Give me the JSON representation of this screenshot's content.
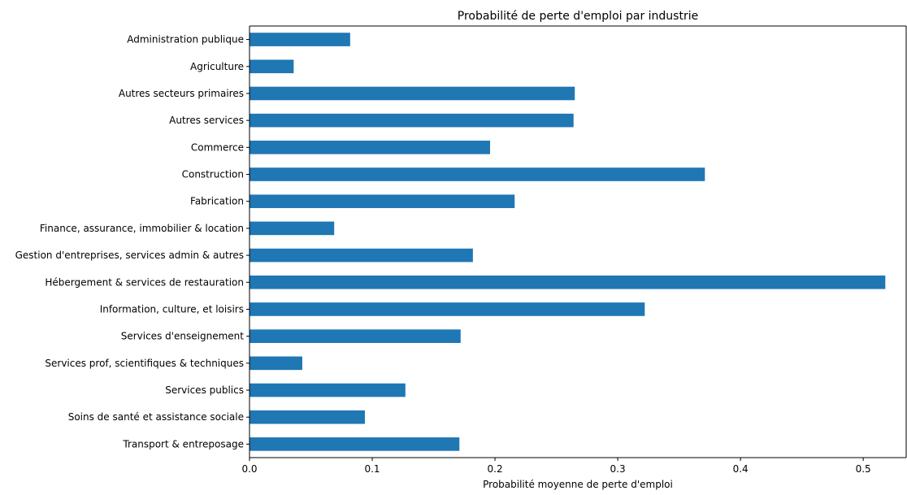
{
  "chart_data": {
    "type": "bar",
    "orientation": "horizontal",
    "title": "Probabilité de perte d'emploi par industrie",
    "xlabel": "Probabilité moyenne de perte d'emploi",
    "ylabel": "",
    "xlim": [
      0,
      0.535
    ],
    "xticks": [
      "0.0",
      "0.1",
      "0.2",
      "0.3",
      "0.4",
      "0.5"
    ],
    "grid": false,
    "legend": "none",
    "bar_color": "#1f77b4",
    "categories": [
      "Administration publique",
      "Agriculture",
      "Autres secteurs primaires",
      "Autres services",
      "Commerce",
      "Construction",
      "Fabrication",
      "Finance, assurance, immobilier & location",
      "Gestion d'entreprises, services admin & autres",
      "Hébergement & services de restauration",
      "Information, culture, et loisirs",
      "Services d'enseignement",
      "Services prof, scientifiques & techniques",
      "Services publics",
      "Soins de santé et assistance sociale",
      "Transport & entreposage"
    ],
    "values": [
      0.082,
      0.036,
      0.265,
      0.264,
      0.196,
      0.371,
      0.216,
      0.069,
      0.182,
      0.518,
      0.322,
      0.172,
      0.043,
      0.127,
      0.094,
      0.171
    ]
  }
}
